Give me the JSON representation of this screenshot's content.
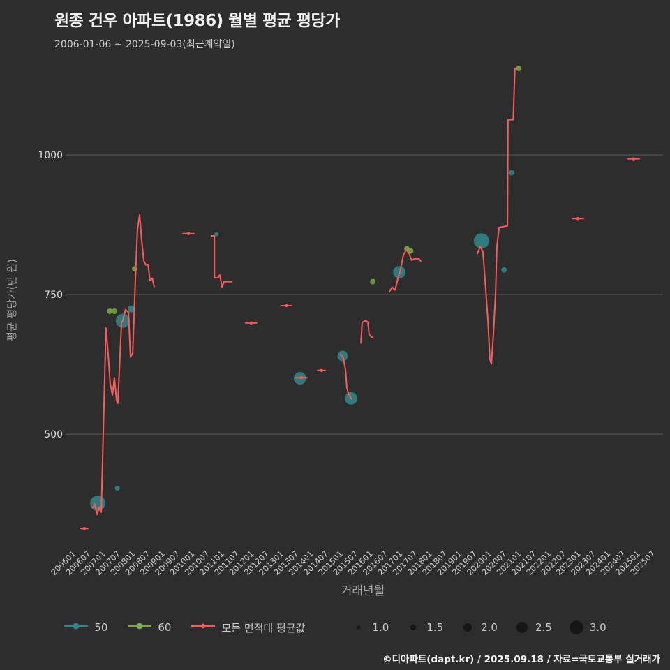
{
  "footer": {
    "credit": "©디아파트(dapt.kr) / 2025.09.18 / 자료=국토교통부 실거래가"
  },
  "chart_data": {
    "type": "line+scatter",
    "title": "원종 건우 아파트(1986) 월별 평균 평당가",
    "subtitle": "2006-01-06 ~ 2025-09-03(최근계약일)",
    "xlabel": "거래년월",
    "ylabel": "평균 평당가(만 원)",
    "x_unit": "months since 2006-01 (tick step = 6 months)",
    "y_unit": "만 원 per pyeong",
    "y_ticks": [
      500,
      750,
      1000
    ],
    "ylim": [
      315,
      1170
    ],
    "xlim": [
      -4,
      238
    ],
    "grid": "horizontal only",
    "x_ticks": [
      "200601",
      "200607",
      "200701",
      "200707",
      "200801",
      "200807",
      "200901",
      "200907",
      "201001",
      "201007",
      "201101",
      "201107",
      "201201",
      "201207",
      "201301",
      "201307",
      "201401",
      "201407",
      "201501",
      "201507",
      "201601",
      "201607",
      "201701",
      "201707",
      "201801",
      "201807",
      "201901",
      "201907",
      "202001",
      "202007",
      "202101",
      "202107",
      "202201",
      "202207",
      "202301",
      "202307",
      "202401",
      "202407",
      "202501",
      "202507"
    ],
    "colors": {
      "background": "#2d2d2d",
      "grid": "#5c5c5c",
      "tick_text": "#cccccc",
      "axis_title": "#a6a6a6",
      "title_text": "#f2f2f2",
      "subtitle_text": "#cfcfcf"
    },
    "line_series": {
      "name": "모든 면적대 평균값",
      "color": "#ff5a5a",
      "segments": [
        [
          [
            3.0,
            331
          ],
          [
            5.9,
            331
          ]
        ],
        [
          [
            7.9,
            368
          ],
          [
            8.7,
            375
          ],
          [
            9.6,
            356
          ],
          [
            10.4,
            369
          ],
          [
            11.3,
            360
          ],
          [
            13.2,
            690
          ],
          [
            14.1,
            643
          ],
          [
            14.9,
            591
          ],
          [
            15.8,
            570
          ],
          [
            16.6,
            601
          ],
          [
            17.5,
            560
          ],
          [
            18.0,
            555
          ],
          [
            19.5,
            700
          ],
          [
            20.0,
            703
          ],
          [
            21.1,
            723
          ],
          [
            22.3,
            718
          ],
          [
            23.1,
            638
          ],
          [
            24.0,
            645
          ],
          [
            25.1,
            778
          ],
          [
            25.9,
            865
          ],
          [
            26.8,
            893
          ],
          [
            27.6,
            848
          ],
          [
            28.5,
            810
          ],
          [
            29.3,
            803
          ],
          [
            30.2,
            804
          ],
          [
            31.0,
            775
          ],
          [
            31.9,
            779
          ],
          [
            32.7,
            764
          ]
        ],
        [
          [
            44.3,
            859
          ],
          [
            48.8,
            859
          ]
        ],
        [
          [
            55.8,
            855
          ],
          [
            57.0,
            855
          ],
          [
            57.0,
            780
          ],
          [
            58.4,
            780
          ],
          [
            59.2,
            785
          ],
          [
            60.1,
            763
          ],
          [
            60.9,
            773
          ],
          [
            64.0,
            773
          ]
        ],
        [
          [
            69.6,
            699
          ],
          [
            74.1,
            699
          ]
        ],
        [
          [
            84.0,
            730
          ],
          [
            88.2,
            730
          ]
        ],
        [
          [
            89.9,
            601
          ],
          [
            94.4,
            601
          ]
        ],
        [
          [
            98.7,
            614
          ],
          [
            101.8,
            614
          ]
        ],
        [
          [
            108.0,
            643
          ],
          [
            109.1,
            636
          ],
          [
            110.0,
            614
          ],
          [
            110.5,
            583
          ],
          [
            111.4,
            569
          ],
          [
            112.5,
            563
          ]
        ],
        [
          [
            116.2,
            663
          ],
          [
            116.7,
            700
          ],
          [
            117.9,
            703
          ],
          [
            119.0,
            701
          ],
          [
            119.5,
            679
          ],
          [
            120.4,
            674
          ],
          [
            121.0,
            673
          ]
        ],
        [
          [
            127.7,
            755
          ],
          [
            128.8,
            763
          ],
          [
            130.0,
            758
          ],
          [
            131.1,
            778
          ],
          [
            132.2,
            795
          ],
          [
            133.3,
            820
          ],
          [
            134.5,
            830
          ],
          [
            135.6,
            824
          ],
          [
            136.7,
            811
          ],
          [
            137.9,
            814
          ],
          [
            139.6,
            814
          ],
          [
            140.4,
            810
          ]
        ],
        [
          [
            163.2,
            823
          ],
          [
            164.4,
            836
          ],
          [
            165.5,
            826
          ],
          [
            166.3,
            778
          ],
          [
            167.5,
            703
          ],
          [
            168.3,
            634
          ],
          [
            168.9,
            626
          ],
          [
            169.7,
            678
          ],
          [
            170.6,
            753
          ],
          [
            171.1,
            835
          ],
          [
            172.0,
            870
          ],
          [
            175.4,
            873
          ],
          [
            175.6,
            1063
          ],
          [
            177.7,
            1063
          ],
          [
            178.4,
            1155
          ],
          [
            179.3,
            1155
          ]
        ],
        [
          [
            201.6,
            886
          ],
          [
            206.1,
            886
          ]
        ],
        [
          [
            224.1,
            993
          ],
          [
            228.6,
            993
          ]
        ]
      ]
    },
    "scatter_series": [
      {
        "name": "50",
        "color": "#2e8688",
        "points": [
          [
            9.9,
            376,
            11
          ],
          [
            17.8,
            403,
            3.5
          ],
          [
            20.0,
            703,
            10
          ],
          [
            23.4,
            724,
            5
          ],
          [
            57.8,
            858,
            3
          ],
          [
            91.6,
            600,
            9
          ],
          [
            108.8,
            640,
            7.5
          ],
          [
            112.2,
            564,
            9
          ],
          [
            131.7,
            790,
            9
          ],
          [
            164.9,
            846,
            11
          ],
          [
            174.0,
            794,
            4
          ],
          [
            177.0,
            968,
            4
          ]
        ]
      },
      {
        "name": "60",
        "color": "#77aa41",
        "points": [
          [
            14.7,
            720,
            4
          ],
          [
            16.6,
            720,
            4
          ],
          [
            24.8,
            796,
            4
          ],
          [
            121.0,
            773,
            4
          ],
          [
            134.8,
            832,
            4
          ],
          [
            136.3,
            828,
            4
          ],
          [
            179.9,
            1155,
            4
          ]
        ]
      }
    ],
    "size_legend": {
      "labels": [
        "1.0",
        "1.5",
        "2.0",
        "2.5",
        "3.0"
      ],
      "dot_color": "#161616"
    }
  }
}
